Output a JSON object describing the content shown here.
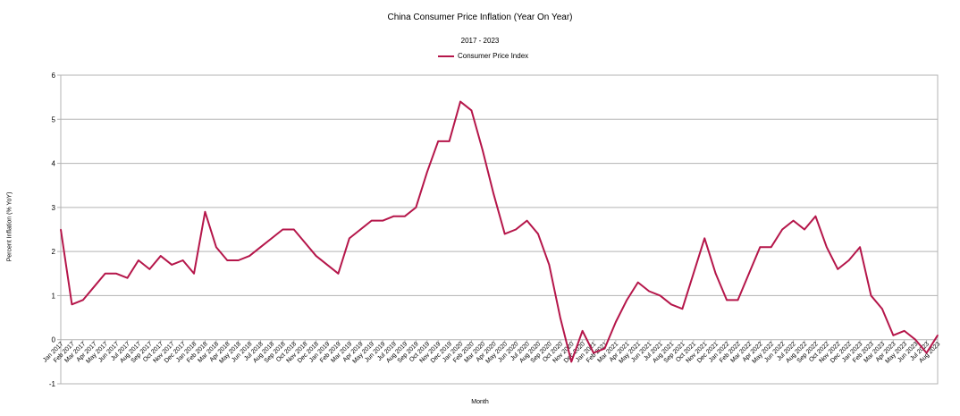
{
  "chart_data": {
    "type": "line",
    "title": "China Consumer Price Inflation (Year On Year)",
    "subtitle": "2017 - 2023",
    "xlabel": "Month",
    "ylabel": "Percent Inflation (% YoY)",
    "ylim": [
      -1,
      6
    ],
    "yticks": [
      -1,
      0,
      1,
      2,
      3,
      4,
      5,
      6
    ],
    "grid": true,
    "legend_position": "top-center",
    "series": [
      {
        "name": "Consumer Price Index",
        "color": "#b5164a",
        "values": [
          2.5,
          0.8,
          0.9,
          1.2,
          1.5,
          1.5,
          1.4,
          1.8,
          1.6,
          1.9,
          1.7,
          1.8,
          1.5,
          2.9,
          2.1,
          1.8,
          1.8,
          1.9,
          2.1,
          2.3,
          2.5,
          2.5,
          2.2,
          1.9,
          1.7,
          1.5,
          2.3,
          2.5,
          2.7,
          2.7,
          2.8,
          2.8,
          3.0,
          3.8,
          4.5,
          4.5,
          5.4,
          5.2,
          4.3,
          3.3,
          2.4,
          2.5,
          2.7,
          2.4,
          1.7,
          0.5,
          -0.5,
          0.2,
          -0.3,
          -0.2,
          0.4,
          0.9,
          1.3,
          1.1,
          1.0,
          0.8,
          0.7,
          1.5,
          2.3,
          1.5,
          0.9,
          0.9,
          1.5,
          2.1,
          2.1,
          2.5,
          2.7,
          2.5,
          2.8,
          2.1,
          1.6,
          1.8,
          2.1,
          1.0,
          0.7,
          0.1,
          0.2,
          0.0,
          -0.3,
          0.1
        ]
      }
    ],
    "categories": [
      "Jan 2017",
      "Feb 2017",
      "Mar 2017",
      "Apr 2017",
      "May 2017",
      "Jun 2017",
      "Jul 2017",
      "Aug 2017",
      "Sep 2017",
      "Oct 2017",
      "Nov 2017",
      "Dec 2017",
      "Jan 2018",
      "Feb 2018",
      "Mar 2018",
      "Apr 2018",
      "May 2018",
      "Jun 2018",
      "Jul 2018",
      "Aug 2018",
      "Sep 2018",
      "Oct 2018",
      "Nov 2018",
      "Dec 2018",
      "Jan 2019",
      "Feb 2019",
      "Mar 2019",
      "Apr 2019",
      "May 2019",
      "Jun 2019",
      "Jul 2019",
      "Aug 2019",
      "Sep 2019",
      "Oct 2019",
      "Nov 2019",
      "Dec 2019",
      "Jan 2020",
      "Feb 2020",
      "Mar 2020",
      "Apr 2020",
      "May 2020",
      "Jun 2020",
      "Jul 2020",
      "Aug 2020",
      "Sep 2020",
      "Oct 2020",
      "Nov 2020",
      "Dec 2020",
      "Jan 2021",
      "Feb 2021",
      "Mar 2021",
      "Apr 2021",
      "May 2021",
      "Jun 2021",
      "Jul 2021",
      "Aug 2021",
      "Sep 2021",
      "Oct 2021",
      "Nov 2021",
      "Dec 2021",
      "Jan 2022",
      "Feb 2022",
      "Mar 2022",
      "Apr 2022",
      "May 2022",
      "Jun 2022",
      "Jul 2022",
      "Aug 2022",
      "Sep 2022",
      "Oct 2022",
      "Nov 2022",
      "Dec 2022",
      "Jan 2023",
      "Feb 2023",
      "Mar 2023",
      "Apr 2023",
      "May 2023",
      "Jun 2023",
      "Jul 2023",
      "Aug 2023"
    ]
  }
}
